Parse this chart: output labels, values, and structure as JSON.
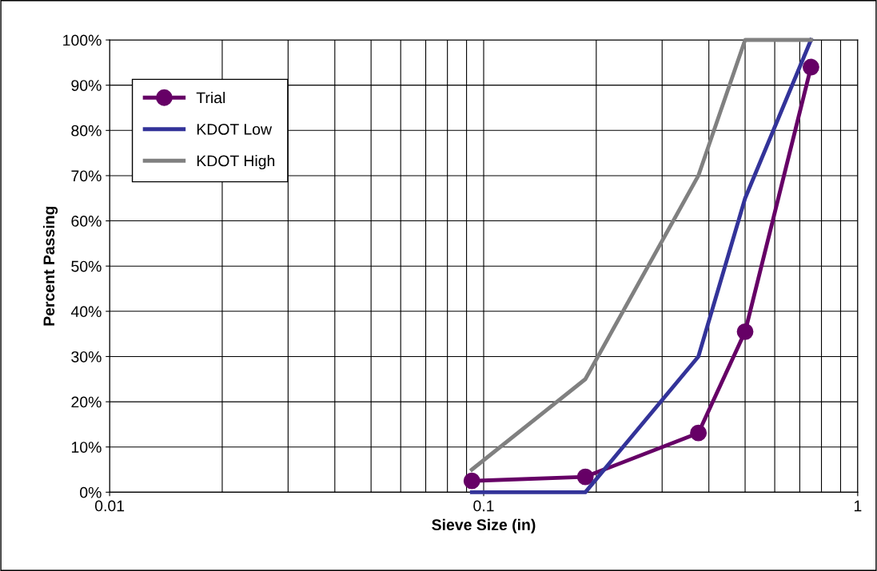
{
  "chart_data": {
    "type": "line",
    "xlabel": "Sieve Size (in)",
    "ylabel": "Percent Passing",
    "x": [
      0.093,
      0.187,
      0.375,
      0.5,
      0.75
    ],
    "series": [
      {
        "name": "Trial",
        "color": "#660066",
        "marker": "circle",
        "values": [
          2.5,
          3.4,
          13.1,
          35.5,
          94
        ]
      },
      {
        "name": "KDOT Low",
        "color": "#333399",
        "marker": "none",
        "values": [
          0,
          0,
          30,
          65,
          100
        ]
      },
      {
        "name": "KDOT High",
        "color": "#808080",
        "marker": "none",
        "values": [
          5,
          25,
          70,
          100,
          100
        ]
      }
    ],
    "log": "x",
    "xlim": [
      0.01,
      1
    ],
    "xticks": [
      0.01,
      0.1,
      1
    ],
    "ylim": [
      0,
      100
    ],
    "yticks": [
      {
        "value": 0,
        "label": "0%"
      },
      {
        "value": 10,
        "label": "10%"
      },
      {
        "value": 20,
        "label": "20%"
      },
      {
        "value": 30,
        "label": "30%"
      },
      {
        "value": 40,
        "label": "40%"
      },
      {
        "value": 50,
        "label": "50%"
      },
      {
        "value": 60,
        "label": "60%"
      },
      {
        "value": 70,
        "label": "70%"
      },
      {
        "value": 80,
        "label": "80%"
      },
      {
        "value": 90,
        "label": "90%"
      },
      {
        "value": 100,
        "label": "100%"
      }
    ],
    "grid": true,
    "legend": "top left",
    "line_style": "solid"
  }
}
